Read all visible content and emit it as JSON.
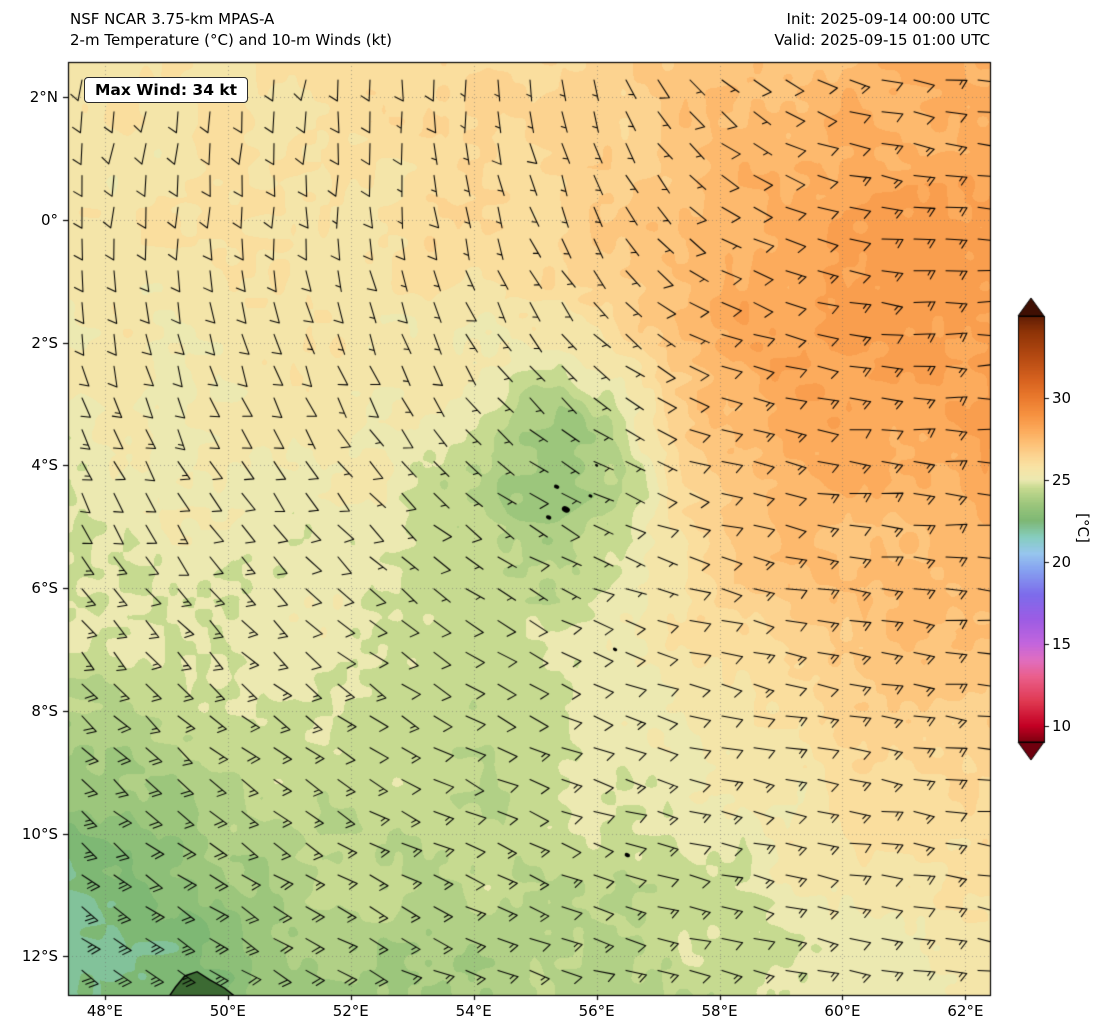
{
  "chart_data": {
    "type": "heatmap",
    "overlays": [
      "wind_barbs",
      "coastlines"
    ],
    "title": "NSF NCAR 3.75-km MPAS-A",
    "subtitle": "2-m Temperature (°C) and 10-m Winds (kt)",
    "init": "Init: 2025-09-14 00:00 UTC",
    "valid": "Valid: 2025-09-15 01:00 UTC",
    "annotation": "Max Wind: 34 kt",
    "max_wind_kt": 34,
    "x_axis": {
      "tick_labels": [
        "48°E",
        "50°E",
        "52°E",
        "54°E",
        "56°E",
        "58°E",
        "60°E",
        "62°E"
      ],
      "tick_values": [
        48,
        50,
        52,
        54,
        56,
        58,
        60,
        62
      ],
      "range": [
        47.4,
        62.4
      ]
    },
    "y_axis": {
      "tick_labels": [
        "2°N",
        "0°",
        "2°S",
        "4°S",
        "6°S",
        "8°S",
        "10°S",
        "12°S"
      ],
      "tick_values": [
        2,
        0,
        -2,
        -4,
        -6,
        -8,
        -10,
        -12
      ],
      "range": [
        -12.63,
        2.57
      ]
    },
    "colorbar": {
      "label": "[°C]",
      "tick_values": [
        10,
        15,
        20,
        25,
        30
      ],
      "range": [
        9,
        35
      ],
      "under_color": "#6f000e",
      "over_color": "#3f0f03",
      "stops": [
        [
          9,
          "#7f0010"
        ],
        [
          10,
          "#c40024"
        ],
        [
          11.5,
          "#e03a52"
        ],
        [
          13,
          "#ea5f8d"
        ],
        [
          14,
          "#e06ec0"
        ],
        [
          15,
          "#c365dd"
        ],
        [
          16.5,
          "#9c5ce4"
        ],
        [
          18,
          "#7d6ceb"
        ],
        [
          19.5,
          "#86a2f0"
        ],
        [
          20.5,
          "#97c6ee"
        ],
        [
          21.5,
          "#86cdbf"
        ],
        [
          22.5,
          "#7eb874"
        ],
        [
          23.5,
          "#9cc67c"
        ],
        [
          24.5,
          "#c6da90"
        ],
        [
          25,
          "#ece9b1"
        ],
        [
          25.8,
          "#f9e3a4"
        ],
        [
          26.5,
          "#fcd390"
        ],
        [
          27.2,
          "#fdc177"
        ],
        [
          28,
          "#fcab5c"
        ],
        [
          29,
          "#f69140"
        ],
        [
          30,
          "#ea7a2e"
        ],
        [
          31,
          "#d96420"
        ],
        [
          32.5,
          "#b54a12"
        ],
        [
          34,
          "#8f3407"
        ],
        [
          35,
          "#601d04"
        ]
      ]
    },
    "temperature_c": {
      "lon": [
        47.4,
        48.4,
        49.4,
        50.4,
        51.4,
        52.4,
        53.4,
        54.4,
        55.4,
        56.4,
        57.4,
        58.4,
        59.4,
        60.4,
        61.4,
        62.4
      ],
      "lat": [
        2.57,
        1.4,
        0.23,
        -0.94,
        -2.11,
        -3.28,
        -4.45,
        -5.62,
        -6.79,
        -7.96,
        -9.13,
        -10.3,
        -11.47,
        -12.63
      ],
      "values": [
        [
          26.2,
          26.3,
          26.3,
          26.4,
          26.5,
          26.5,
          26.6,
          26.7,
          26.8,
          27.0,
          27.3,
          27.6,
          27.9,
          28.1,
          28.2,
          28.3
        ],
        [
          26.1,
          26.2,
          26.3,
          26.3,
          26.4,
          26.5,
          26.6,
          26.7,
          26.8,
          27.1,
          27.5,
          27.9,
          28.2,
          28.4,
          28.5,
          28.5
        ],
        [
          26.0,
          26.1,
          26.1,
          26.2,
          26.3,
          26.4,
          26.5,
          26.6,
          26.7,
          27.1,
          27.8,
          28.3,
          28.6,
          28.8,
          28.9,
          28.9
        ],
        [
          25.9,
          26.0,
          26.0,
          26.1,
          26.2,
          26.3,
          26.4,
          26.5,
          26.6,
          27.1,
          28.0,
          28.5,
          28.8,
          28.9,
          29.0,
          29.0
        ],
        [
          25.8,
          25.9,
          25.9,
          26.0,
          26.0,
          26.1,
          26.0,
          25.8,
          25.7,
          26.5,
          27.8,
          28.5,
          28.8,
          28.9,
          28.9,
          28.9
        ],
        [
          25.7,
          25.8,
          25.8,
          25.8,
          25.9,
          25.9,
          25.6,
          24.7,
          24.1,
          25.1,
          27.2,
          28.2,
          28.6,
          28.7,
          28.7,
          28.7
        ],
        [
          25.6,
          25.6,
          25.7,
          25.7,
          25.8,
          25.7,
          25.2,
          24.2,
          23.8,
          24.7,
          26.7,
          27.7,
          28.1,
          28.3,
          28.4,
          28.4
        ],
        [
          25.4,
          25.5,
          25.5,
          25.6,
          25.6,
          25.5,
          25.2,
          24.8,
          24.9,
          25.6,
          26.5,
          27.3,
          27.7,
          27.9,
          28.0,
          28.1
        ],
        [
          25.2,
          25.3,
          25.3,
          25.4,
          25.4,
          25.4,
          25.2,
          25.1,
          25.3,
          25.8,
          26.2,
          26.8,
          27.2,
          27.5,
          27.7,
          27.8
        ],
        [
          24.8,
          25.0,
          25.1,
          25.2,
          25.2,
          25.2,
          25.1,
          25.1,
          25.2,
          25.5,
          25.9,
          26.3,
          26.7,
          27.0,
          27.2,
          27.4
        ],
        [
          23.9,
          24.3,
          24.7,
          24.9,
          25.0,
          25.0,
          25.0,
          25.0,
          25.1,
          25.3,
          25.6,
          25.9,
          26.2,
          26.5,
          26.8,
          27.0
        ],
        [
          23.2,
          23.5,
          24.0,
          24.5,
          24.8,
          24.9,
          24.9,
          25.0,
          25.0,
          25.1,
          25.3,
          25.6,
          25.8,
          26.1,
          26.4,
          26.6
        ],
        [
          22.7,
          23.0,
          23.3,
          23.9,
          24.5,
          24.7,
          24.6,
          24.8,
          24.9,
          25.0,
          25.1,
          25.3,
          25.5,
          25.8,
          26.0,
          26.2
        ],
        [
          22.5,
          22.6,
          22.9,
          23.5,
          24.1,
          24.4,
          24.3,
          24.5,
          24.7,
          24.8,
          24.9,
          25.1,
          25.3,
          25.5,
          25.7,
          25.9
        ]
      ]
    },
    "wind_kt": {
      "lon": [
        47.4,
        49.54,
        51.69,
        53.83,
        55.97,
        58.11,
        60.26,
        62.4
      ],
      "lat": [
        2.57,
        0.4,
        -1.77,
        -3.94,
        -6.12,
        -8.29,
        -10.46,
        -12.63
      ],
      "dir_from_deg": [
        [
          200,
          198,
          195,
          188,
          175,
          140,
          115,
          100
        ],
        [
          192,
          190,
          186,
          178,
          162,
          128,
          108,
          98
        ],
        [
          178,
          175,
          170,
          160,
          142,
          118,
          104,
          95
        ],
        [
          162,
          158,
          150,
          140,
          126,
          112,
          103,
          99
        ],
        [
          150,
          146,
          140,
          130,
          119,
          110,
          105,
          101
        ],
        [
          141,
          138,
          132,
          124,
          116,
          110,
          106,
          103
        ],
        [
          135,
          132,
          127,
          121,
          115,
          110,
          107,
          105
        ],
        [
          130,
          128,
          124,
          118,
          114,
          110,
          108,
          106
        ]
      ],
      "speed": [
        [
          12,
          12,
          11,
          9,
          8,
          9,
          13,
          16
        ],
        [
          13,
          12,
          11,
          9,
          7,
          10,
          15,
          17
        ],
        [
          13,
          12,
          10,
          8,
          7,
          12,
          16,
          18
        ],
        [
          14,
          13,
          10,
          7,
          7,
          12,
          16,
          18
        ],
        [
          16,
          15,
          12,
          9,
          10,
          13,
          16,
          17
        ],
        [
          20,
          18,
          15,
          12,
          13,
          14,
          16,
          17
        ],
        [
          26,
          22,
          18,
          15,
          14,
          15,
          16,
          16
        ],
        [
          32,
          28,
          22,
          17,
          15,
          15,
          16,
          16
        ]
      ]
    },
    "geography": {
      "island_dots": [
        [
          55.35,
          -4.35,
          2
        ],
        [
          55.5,
          -4.72,
          3
        ],
        [
          55.22,
          -4.85,
          2
        ],
        [
          55.9,
          -4.5,
          1.5
        ],
        [
          56.0,
          -4.0,
          1.2
        ],
        [
          56.3,
          -7.0,
          1.6
        ],
        [
          56.5,
          -10.35,
          2
        ]
      ],
      "madagascar_coast": [
        [
          48.95,
          -12.95
        ],
        [
          49.0,
          -12.72
        ],
        [
          49.15,
          -12.5
        ],
        [
          49.3,
          -12.32
        ],
        [
          49.5,
          -12.25
        ],
        [
          49.7,
          -12.38
        ],
        [
          49.95,
          -12.52
        ],
        [
          50.15,
          -12.68
        ],
        [
          50.3,
          -12.85
        ],
        [
          50.35,
          -12.95
        ]
      ]
    }
  }
}
